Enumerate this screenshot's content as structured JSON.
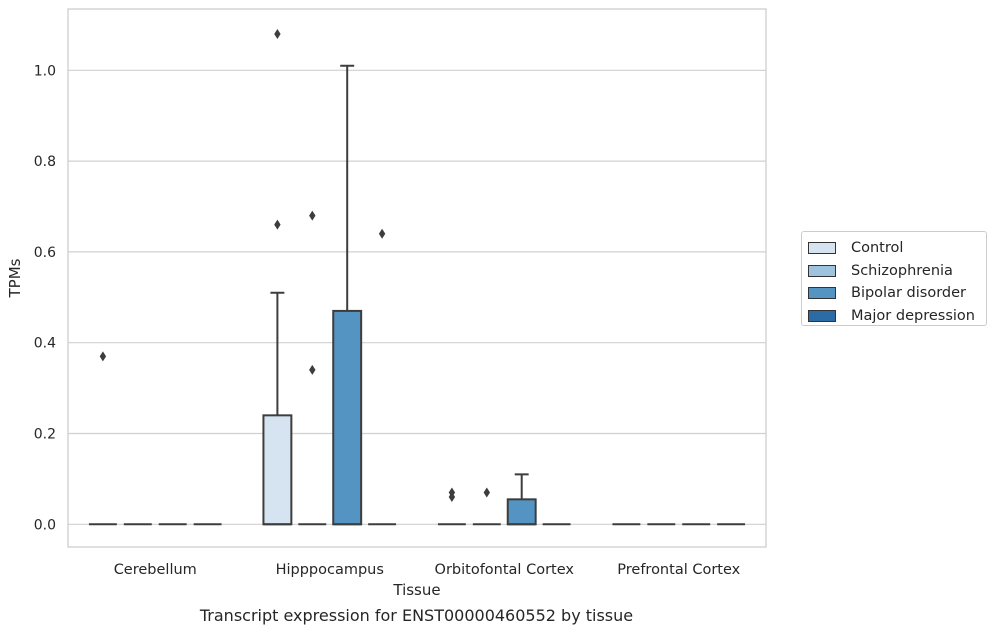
{
  "chart_data": {
    "type": "boxplot",
    "xlabel": "Tissue",
    "ylabel": "TPMs",
    "ylim": [
      -0.05,
      1.135
    ],
    "yticks": [
      0.0,
      0.2,
      0.4,
      0.6,
      0.8,
      1.0
    ],
    "ytick_labels": [
      "0.0",
      "0.2",
      "0.4",
      "0.6",
      "0.8",
      "1.0"
    ],
    "grid": "horizontal",
    "legend_position": "outside-right",
    "categories": [
      "Cerebellum",
      "Hipppocampus",
      "Orbitofontal Cortex",
      "Prefrontal Cortex"
    ],
    "series": [
      {
        "name": "Control",
        "color": "#d6e4f2",
        "boxes": [
          {
            "q1": 0,
            "median": 0,
            "q3": 0,
            "whislo": 0,
            "whishi": 0,
            "fliers": [
              0.37
            ]
          },
          {
            "q1": 0,
            "median": 0,
            "q3": 0.24,
            "whislo": 0,
            "whishi": 0.51,
            "fliers": [
              0.66,
              1.08
            ]
          },
          {
            "q1": 0,
            "median": 0,
            "q3": 0,
            "whislo": 0,
            "whishi": 0,
            "fliers": [
              0.06,
              0.07
            ]
          },
          {
            "q1": 0,
            "median": 0,
            "q3": 0,
            "whislo": 0,
            "whishi": 0,
            "fliers": []
          }
        ]
      },
      {
        "name": "Schizophrenia",
        "color": "#9dc3de",
        "boxes": [
          {
            "q1": 0,
            "median": 0,
            "q3": 0,
            "whislo": 0,
            "whishi": 0,
            "fliers": []
          },
          {
            "q1": 0,
            "median": 0,
            "q3": 0,
            "whislo": 0,
            "whishi": 0,
            "fliers": [
              0.34,
              0.68
            ]
          },
          {
            "q1": 0,
            "median": 0,
            "q3": 0,
            "whislo": 0,
            "whishi": 0,
            "fliers": [
              0.07
            ]
          },
          {
            "q1": 0,
            "median": 0,
            "q3": 0,
            "whislo": 0,
            "whishi": 0,
            "fliers": []
          }
        ]
      },
      {
        "name": "Bipolar disorder",
        "color": "#5494c3",
        "boxes": [
          {
            "q1": 0,
            "median": 0,
            "q3": 0,
            "whislo": 0,
            "whishi": 0,
            "fliers": []
          },
          {
            "q1": 0,
            "median": 0,
            "q3": 0.47,
            "whislo": 0,
            "whishi": 1.01,
            "fliers": []
          },
          {
            "q1": 0,
            "median": 0,
            "q3": 0.055,
            "whislo": 0,
            "whishi": 0.11,
            "fliers": []
          },
          {
            "q1": 0,
            "median": 0,
            "q3": 0,
            "whislo": 0,
            "whishi": 0,
            "fliers": []
          }
        ]
      },
      {
        "name": "Major depression",
        "color": "#2b6ba6",
        "boxes": [
          {
            "q1": 0,
            "median": 0,
            "q3": 0,
            "whislo": 0,
            "whishi": 0,
            "fliers": []
          },
          {
            "q1": 0,
            "median": 0,
            "q3": 0,
            "whislo": 0,
            "whishi": 0,
            "fliers": [
              0.64
            ]
          },
          {
            "q1": 0,
            "median": 0,
            "q3": 0,
            "whislo": 0,
            "whishi": 0,
            "fliers": []
          },
          {
            "q1": 0,
            "median": 0,
            "q3": 0,
            "whislo": 0,
            "whishi": 0,
            "fliers": []
          }
        ]
      }
    ]
  },
  "caption": "Transcript expression for ENST00000460552 by tissue"
}
